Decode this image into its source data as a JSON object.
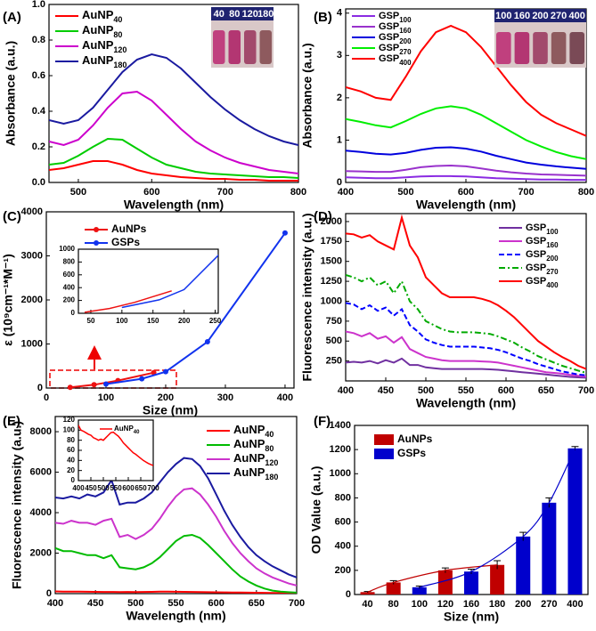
{
  "chart_data": [
    {
      "type": "line",
      "panel": "(A)",
      "xlabel": "Wavelength (nm)",
      "ylabel": "Absorbance (a.u.)",
      "x": [
        460,
        480,
        500,
        520,
        540,
        560,
        580,
        600,
        620,
        640,
        660,
        680,
        700,
        720,
        740,
        760,
        780,
        800
      ],
      "xlim": [
        460,
        800
      ],
      "ylim": [
        0,
        1.0
      ],
      "xticks": [
        500,
        600,
        700,
        800
      ],
      "yticks": [
        {
          "value": 0,
          "label": "0.0"
        },
        {
          "value": 0.2,
          "label": "0.2"
        },
        {
          "value": 0.4,
          "label": "0.4"
        },
        {
          "value": 0.6,
          "label": "0.6"
        },
        {
          "value": 0.8,
          "label": "0.8"
        },
        {
          "value": 1.0,
          "label": "1.0"
        }
      ],
      "photo_labels": [
        "40",
        "80",
        "120",
        "180"
      ],
      "series": [
        {
          "name": "AuNP",
          "sub": "40",
          "color": "#ff0000",
          "values": [
            0.07,
            0.08,
            0.1,
            0.12,
            0.12,
            0.1,
            0.07,
            0.05,
            0.04,
            0.03,
            0.025,
            0.02,
            0.02,
            0.015,
            0.015,
            0.01,
            0.01,
            0.01
          ]
        },
        {
          "name": "AuNP",
          "sub": "80",
          "color": "#00cc00",
          "values": [
            0.1,
            0.11,
            0.15,
            0.2,
            0.245,
            0.24,
            0.19,
            0.14,
            0.1,
            0.08,
            0.06,
            0.05,
            0.045,
            0.04,
            0.035,
            0.03,
            0.03,
            0.025
          ]
        },
        {
          "name": "AuNP",
          "sub": "120",
          "color": "#cc00cc",
          "values": [
            0.23,
            0.21,
            0.24,
            0.32,
            0.42,
            0.5,
            0.51,
            0.46,
            0.38,
            0.3,
            0.23,
            0.18,
            0.14,
            0.11,
            0.09,
            0.07,
            0.06,
            0.05
          ]
        },
        {
          "name": "AuNP",
          "sub": "180",
          "color": "#1a1aa0",
          "values": [
            0.35,
            0.33,
            0.35,
            0.42,
            0.52,
            0.62,
            0.69,
            0.72,
            0.7,
            0.64,
            0.56,
            0.48,
            0.41,
            0.35,
            0.3,
            0.26,
            0.23,
            0.21
          ]
        }
      ]
    },
    {
      "type": "line",
      "panel": "(B)",
      "xlabel": "Wavelength (nm)",
      "ylabel": "Absorbance (a.u.)",
      "x": [
        400,
        425,
        450,
        475,
        500,
        525,
        550,
        575,
        600,
        625,
        650,
        675,
        700,
        725,
        750,
        775,
        800
      ],
      "xlim": [
        400,
        800
      ],
      "ylim": [
        0,
        4.1
      ],
      "xticks": [
        400,
        500,
        600,
        700,
        800
      ],
      "yticks": [
        0,
        1,
        2,
        3,
        4
      ],
      "photo_labels": [
        "100",
        "160",
        "200",
        "270",
        "400"
      ],
      "series": [
        {
          "name": "GSP",
          "sub": "100",
          "color": "#8a2be2",
          "values": [
            0.12,
            0.11,
            0.1,
            0.1,
            0.12,
            0.14,
            0.15,
            0.15,
            0.14,
            0.12,
            0.1,
            0.09,
            0.08,
            0.07,
            0.07,
            0.06,
            0.06
          ]
        },
        {
          "name": "GSP",
          "sub": "160",
          "color": "#9932cc",
          "values": [
            0.27,
            0.26,
            0.25,
            0.25,
            0.3,
            0.36,
            0.39,
            0.4,
            0.38,
            0.33,
            0.28,
            0.24,
            0.21,
            0.19,
            0.18,
            0.17,
            0.16
          ]
        },
        {
          "name": "GSP",
          "sub": "200",
          "color": "#0000dd",
          "values": [
            0.75,
            0.72,
            0.68,
            0.66,
            0.7,
            0.77,
            0.82,
            0.83,
            0.8,
            0.73,
            0.63,
            0.55,
            0.47,
            0.42,
            0.38,
            0.35,
            0.32
          ]
        },
        {
          "name": "GSP",
          "sub": "270",
          "color": "#00ee00",
          "values": [
            1.5,
            1.43,
            1.35,
            1.3,
            1.45,
            1.62,
            1.75,
            1.8,
            1.75,
            1.6,
            1.4,
            1.2,
            1.0,
            0.85,
            0.72,
            0.62,
            0.55
          ]
        },
        {
          "name": "GSP",
          "sub": "400",
          "color": "#ff0000",
          "values": [
            2.25,
            2.15,
            2.0,
            1.95,
            2.5,
            3.1,
            3.55,
            3.7,
            3.55,
            3.2,
            2.75,
            2.3,
            1.9,
            1.6,
            1.4,
            1.25,
            1.1
          ]
        }
      ]
    },
    {
      "type": "line",
      "panel": "(C)",
      "xlabel": "Size (nm)",
      "ylabel": "ε (10⁹cm⁻¹*M⁻¹)",
      "xlim": [
        0,
        415
      ],
      "ylim": [
        0,
        4000
      ],
      "xticks": [
        0,
        100,
        200,
        300,
        400
      ],
      "yticks": [
        0,
        1000,
        2000,
        3000,
        4000
      ],
      "inset": {
        "xlim": [
          30,
          255
        ],
        "ylim": [
          0,
          1000
        ],
        "xticks": [
          50,
          100,
          150,
          200,
          250
        ],
        "yticks": [
          0,
          200,
          400,
          600,
          800,
          1000
        ]
      },
      "series": [
        {
          "name": "AuNPs",
          "color": "#ee1111",
          "marker": "circle",
          "x": [
            40,
            80,
            120,
            180
          ],
          "values": [
            15,
            75,
            170,
            350
          ]
        },
        {
          "name": "GSPs",
          "color": "#1133ee",
          "marker": "circle",
          "x": [
            100,
            160,
            200,
            270,
            400
          ],
          "values": [
            90,
            210,
            370,
            1050,
            3520
          ]
        }
      ]
    },
    {
      "type": "line",
      "panel": "(D)",
      "xlabel": "Wavelength (nm)",
      "ylabel": "Fluorescence intensity (a.u.)",
      "x": [
        400,
        410,
        420,
        430,
        440,
        450,
        460,
        470,
        480,
        490,
        500,
        510,
        520,
        530,
        540,
        550,
        560,
        570,
        580,
        590,
        600,
        610,
        620,
        630,
        640,
        650,
        660,
        670,
        680,
        690,
        700
      ],
      "xlim": [
        400,
        700
      ],
      "ylim": [
        0,
        2100
      ],
      "xticks": [
        400,
        450,
        500,
        550,
        600,
        650,
        700
      ],
      "yticks": [
        250,
        500,
        750,
        1000,
        1250,
        1500,
        1750,
        2000
      ],
      "series": [
        {
          "name": "GSP",
          "sub": "100",
          "color": "#7030a0",
          "values": [
            230,
            240,
            230,
            250,
            220,
            260,
            230,
            280,
            200,
            200,
            170,
            160,
            150,
            150,
            150,
            150,
            150,
            150,
            145,
            140,
            130,
            120,
            110,
            100,
            90,
            80,
            70,
            60,
            50,
            45,
            40
          ]
        },
        {
          "name": "GSP",
          "sub": "160",
          "color": "#cc33cc",
          "values": [
            620,
            600,
            560,
            600,
            530,
            560,
            480,
            550,
            400,
            350,
            300,
            280,
            260,
            250,
            250,
            250,
            250,
            245,
            240,
            230,
            210,
            190,
            170,
            150,
            130,
            110,
            100,
            90,
            75,
            65,
            55
          ]
        },
        {
          "name": "GSP",
          "sub": "200",
          "color": "#0000ff",
          "dash": "dashed",
          "values": [
            980,
            960,
            900,
            950,
            880,
            920,
            820,
            900,
            700,
            620,
            520,
            480,
            450,
            430,
            430,
            430,
            430,
            420,
            410,
            390,
            360,
            320,
            280,
            250,
            210,
            180,
            150,
            120,
            100,
            80,
            70
          ]
        },
        {
          "name": "GSP",
          "sub": "270",
          "color": "#00aa00",
          "dash": "dashdot",
          "values": [
            1330,
            1300,
            1250,
            1300,
            1200,
            1250,
            1100,
            1250,
            1000,
            900,
            750,
            700,
            650,
            620,
            610,
            610,
            610,
            600,
            590,
            560,
            520,
            480,
            420,
            370,
            310,
            270,
            230,
            190,
            160,
            130,
            100
          ]
        },
        {
          "name": "GSP",
          "sub": "400",
          "color": "#ff0000",
          "values": [
            1850,
            1840,
            1800,
            1830,
            1750,
            1700,
            1650,
            2050,
            1700,
            1550,
            1300,
            1200,
            1100,
            1050,
            1050,
            1050,
            1050,
            1030,
            1000,
            950,
            880,
            800,
            700,
            600,
            500,
            430,
            360,
            300,
            250,
            190,
            150
          ]
        }
      ]
    },
    {
      "type": "line",
      "panel": "(E)",
      "xlabel": "Wavelength (nm)",
      "ylabel": "Fluorescence intensity (a.u.)",
      "x": [
        400,
        410,
        420,
        430,
        440,
        450,
        460,
        470,
        480,
        490,
        500,
        510,
        520,
        530,
        540,
        550,
        560,
        570,
        580,
        590,
        600,
        610,
        620,
        630,
        640,
        650,
        660,
        670,
        680,
        690,
        700
      ],
      "xlim": [
        400,
        700
      ],
      "ylim": [
        0,
        8750
      ],
      "xticks": [
        400,
        450,
        500,
        550,
        600,
        650,
        700
      ],
      "yticks": [
        0,
        2000,
        4000,
        6000,
        8000
      ],
      "inset": {
        "xlim": [
          400,
          700
        ],
        "ylim": [
          0,
          120
        ],
        "xticks": [
          400,
          450,
          500,
          550,
          600,
          650,
          700
        ],
        "yticks": [
          0,
          20,
          40,
          60,
          80,
          100,
          120
        ]
      },
      "series": [
        {
          "name": "AuNP",
          "sub": "40",
          "color": "#ff0000",
          "values": [
            110,
            100,
            98,
            95,
            92,
            90,
            85,
            83,
            80,
            82,
            80,
            85,
            90,
            95,
            96,
            92,
            88,
            82,
            75,
            70,
            65,
            60,
            55,
            52,
            48,
            44,
            40,
            37,
            34,
            32,
            30
          ]
        },
        {
          "name": "AuNP",
          "sub": "80",
          "color": "#00bb00",
          "values": [
            2250,
            2100,
            2100,
            2000,
            1900,
            1900,
            1750,
            1900,
            1300,
            1250,
            1200,
            1300,
            1500,
            1800,
            2200,
            2600,
            2850,
            2900,
            2750,
            2400,
            2000,
            1600,
            1200,
            850,
            600,
            400,
            250,
            150,
            100,
            70,
            50
          ]
        },
        {
          "name": "AuNP",
          "sub": "120",
          "color": "#cc33cc",
          "values": [
            3500,
            3450,
            3600,
            3500,
            3500,
            3400,
            3600,
            3700,
            2800,
            2900,
            2700,
            2900,
            3200,
            3700,
            4300,
            4800,
            5150,
            5200,
            4900,
            4400,
            3800,
            3100,
            2500,
            2000,
            1600,
            1250,
            1000,
            800,
            650,
            500,
            400
          ]
        },
        {
          "name": "AuNP",
          "sub": "180",
          "color": "#1a1aa0",
          "values": [
            4750,
            4700,
            4800,
            4700,
            4900,
            4800,
            5000,
            5600,
            4400,
            4500,
            4500,
            4700,
            5000,
            5500,
            6000,
            6400,
            6700,
            6650,
            6300,
            5700,
            4900,
            4100,
            3400,
            2800,
            2300,
            1900,
            1600,
            1350,
            1150,
            950,
            800
          ]
        }
      ]
    },
    {
      "type": "bar",
      "panel": "(F)",
      "xlabel": "Size (nm)",
      "ylabel": "OD Value (a.u.)",
      "categories": [
        "40",
        "80",
        "100",
        "120",
        "160",
        "180",
        "200",
        "270",
        "400"
      ],
      "ylim": [
        0,
        1400
      ],
      "yticks": [
        0,
        200,
        400,
        600,
        800,
        1000,
        1200,
        1400
      ],
      "series": [
        {
          "name": "AuNPs",
          "color": "#c00000",
          "values": [
            20,
            100,
            null,
            200,
            null,
            245,
            null,
            null,
            null
          ],
          "errors": [
            5,
            15,
            null,
            20,
            null,
            35,
            null,
            null,
            null
          ]
        },
        {
          "name": "GSPs",
          "color": "#0000cc",
          "values": [
            null,
            null,
            60,
            null,
            190,
            null,
            480,
            760,
            1210
          ],
          "errors": [
            null,
            null,
            10,
            null,
            20,
            null,
            35,
            40,
            15
          ]
        }
      ]
    }
  ]
}
